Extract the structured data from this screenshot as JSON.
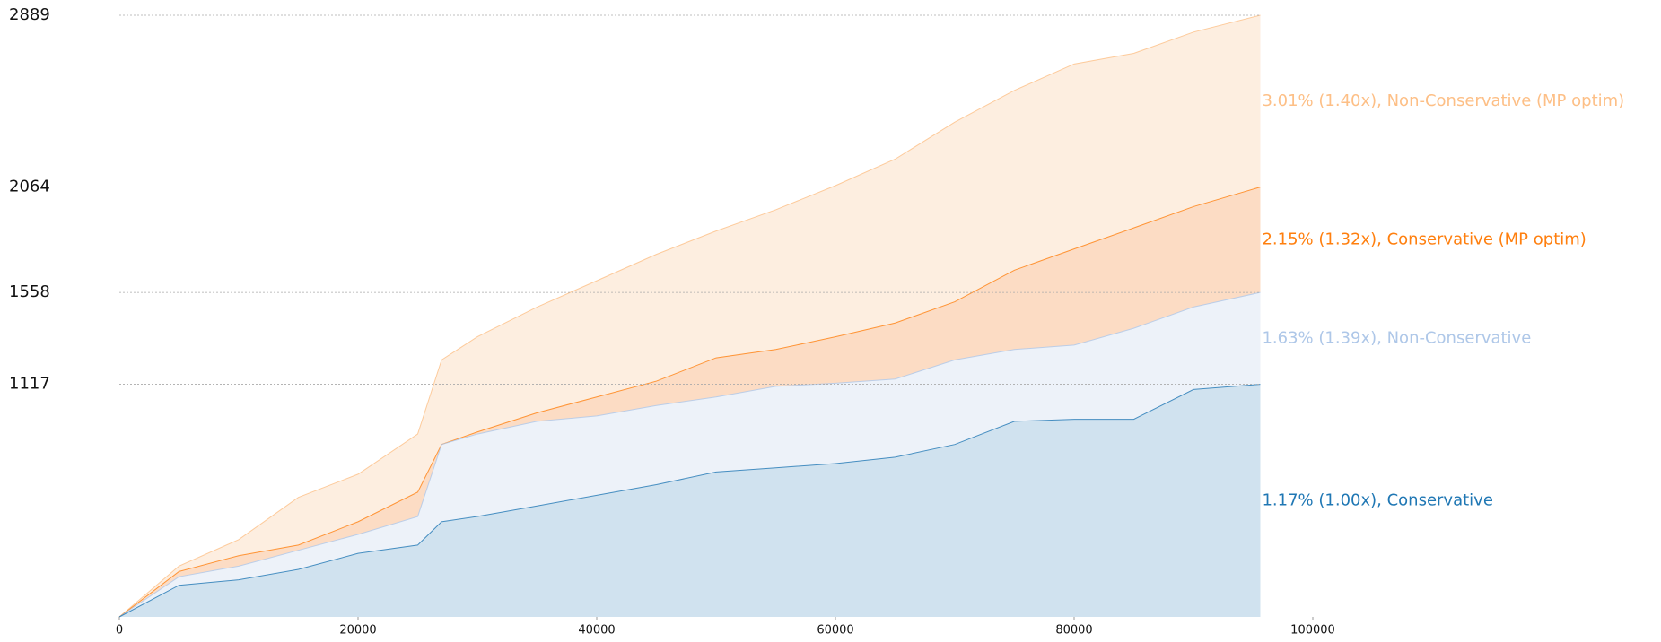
{
  "chart_data": {
    "type": "area",
    "x": [
      0,
      5000,
      10000,
      15000,
      20000,
      25000,
      27000,
      30000,
      35000,
      40000,
      45000,
      50000,
      55000,
      60000,
      65000,
      70000,
      75000,
      80000,
      85000,
      90000,
      95600
    ],
    "series": [
      {
        "name": "3.01% (1.40x), Non-Conservative (MP optim)",
        "color": "#fdbf86",
        "fill": "#fdeee0",
        "values": [
          0,
          244,
          371,
          574,
          685,
          878,
          1234,
          1345,
          1488,
          1614,
          1741,
          1853,
          1955,
          2071,
          2198,
          2376,
          2528,
          2655,
          2706,
          2808,
          2889
        ]
      },
      {
        "name": "2.15% (1.32x), Conservative (MP optim)",
        "color": "#ff7f0e",
        "fill": "#fcdcc4",
        "values": [
          0,
          218,
          294,
          345,
          457,
          599,
          828,
          888,
          980,
          1056,
          1132,
          1244,
          1284,
          1345,
          1411,
          1513,
          1665,
          1767,
          1868,
          1970,
          2064
        ]
      },
      {
        "name": "1.63% (1.39x), Non-Conservative",
        "color": "#aec7e8",
        "fill": "#edf2f9",
        "values": [
          0,
          193,
          244,
          320,
          396,
          482,
          828,
          878,
          939,
          965,
          1015,
          1056,
          1107,
          1122,
          1142,
          1234,
          1284,
          1305,
          1386,
          1488,
          1558
        ]
      },
      {
        "name": "1.17% (1.00x), Conservative",
        "color": "#1f77b4",
        "fill": "#d0e2ef",
        "values": [
          0,
          152,
          178,
          228,
          305,
          345,
          457,
          482,
          533,
          584,
          635,
          696,
          716,
          736,
          767,
          828,
          939,
          949,
          949,
          1092,
          1117
        ]
      }
    ],
    "xlim": [
      0,
      100000
    ],
    "xticks": [
      0,
      20000,
      40000,
      60000,
      80000,
      100000
    ],
    "ylim": [
      0,
      2889
    ],
    "yticks": [
      1117,
      1558,
      2064,
      2889
    ],
    "grid": true
  }
}
